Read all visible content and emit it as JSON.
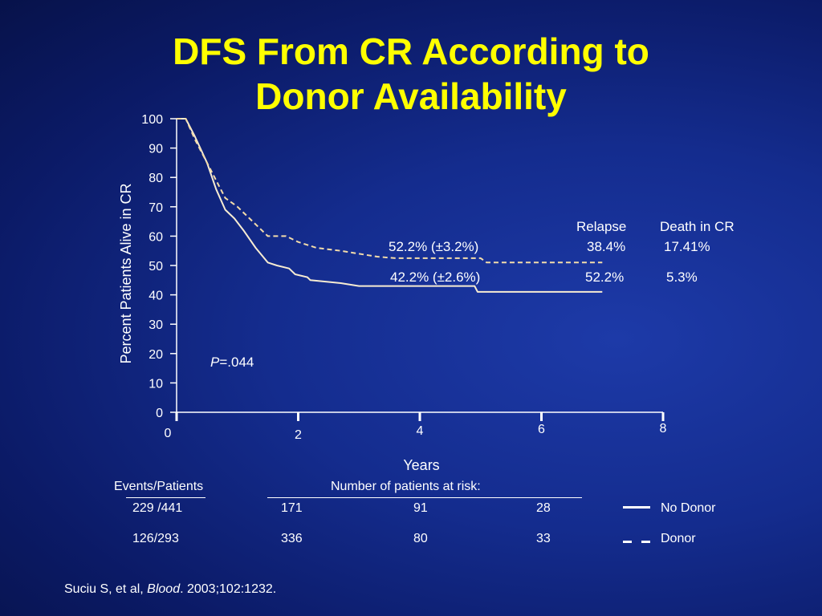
{
  "title": {
    "line1": "DFS From CR According to",
    "line2": "Donor Availability"
  },
  "chart_data": {
    "type": "line",
    "ylabel": "Percent Patients Alive in CR",
    "xlabel": "Years",
    "xlim": [
      0,
      8
    ],
    "ylim": [
      0,
      100
    ],
    "x_ticks": [
      "0",
      "2",
      "4",
      "6",
      "8"
    ],
    "y_ticks": [
      "0",
      "10",
      "20",
      "30",
      "40",
      "50",
      "60",
      "70",
      "80",
      "90",
      "100"
    ],
    "pvalue": {
      "label": "P",
      "value": "=.044"
    },
    "annotations": {
      "relapse_header": "Relapse",
      "death_header": "Death in CR",
      "donor_dfs": "52.2% (±3.2%)",
      "donor_relapse": "38.4%",
      "donor_death": "17.41%",
      "nodonor_dfs": "42.2% (±2.6%)",
      "nodonor_relapse": "52.2%",
      "nodonor_death": "5.3%"
    },
    "series": [
      {
        "name": "No Donor",
        "style": "solid",
        "points": [
          [
            0,
            100
          ],
          [
            0.15,
            100
          ],
          [
            0.3,
            94
          ],
          [
            0.5,
            85
          ],
          [
            0.65,
            76
          ],
          [
            0.8,
            69
          ],
          [
            0.95,
            66
          ],
          [
            1.1,
            62
          ],
          [
            1.3,
            56
          ],
          [
            1.5,
            51
          ],
          [
            1.65,
            50
          ],
          [
            1.85,
            49
          ],
          [
            1.95,
            47
          ],
          [
            2.15,
            46
          ],
          [
            2.2,
            45
          ],
          [
            2.7,
            44
          ],
          [
            3.0,
            43
          ],
          [
            4.0,
            43
          ],
          [
            4.9,
            43
          ],
          [
            4.95,
            41
          ],
          [
            7.0,
            41
          ]
        ]
      },
      {
        "name": "Donor",
        "style": "dashed",
        "points": [
          [
            0,
            100
          ],
          [
            0.15,
            100
          ],
          [
            0.3,
            93
          ],
          [
            0.45,
            87
          ],
          [
            0.55,
            83
          ],
          [
            0.7,
            77
          ],
          [
            0.8,
            73
          ],
          [
            1.0,
            70
          ],
          [
            1.2,
            66
          ],
          [
            1.35,
            63
          ],
          [
            1.5,
            60
          ],
          [
            1.8,
            60
          ],
          [
            2.0,
            58
          ],
          [
            2.3,
            56
          ],
          [
            2.7,
            55
          ],
          [
            3.0,
            54
          ],
          [
            3.3,
            53
          ],
          [
            3.6,
            52.5
          ],
          [
            4.0,
            52.5
          ],
          [
            5.0,
            52.5
          ],
          [
            5.1,
            51
          ],
          [
            7.0,
            51
          ]
        ]
      }
    ]
  },
  "table": {
    "events_header": "Events/Patients",
    "risk_header": "Number of patients at risk:",
    "rows": [
      {
        "events": "229 /441",
        "risk": [
          "171",
          "91",
          "28"
        ],
        "legend": "No Donor",
        "style": "solid"
      },
      {
        "events": "126/293",
        "risk": [
          "336",
          "80",
          "33"
        ],
        "legend": "Donor",
        "style": "dashed"
      }
    ]
  },
  "citation": {
    "authors": "Suciu S, et al, ",
    "journal": "Blood",
    "rest": ". 2003;102:1232."
  }
}
